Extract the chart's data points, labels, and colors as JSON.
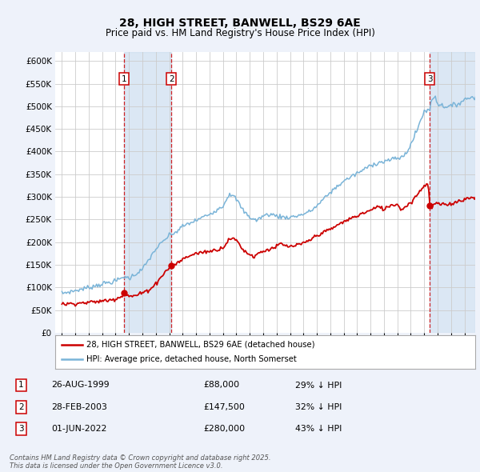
{
  "title": "28, HIGH STREET, BANWELL, BS29 6AE",
  "subtitle": "Price paid vs. HM Land Registry's House Price Index (HPI)",
  "legend_line1": "28, HIGH STREET, BANWELL, BS29 6AE (detached house)",
  "legend_line2": "HPI: Average price, detached house, North Somerset",
  "footer": "Contains HM Land Registry data © Crown copyright and database right 2025.\nThis data is licensed under the Open Government Licence v3.0.",
  "transactions": [
    {
      "num": 1,
      "date": "26-AUG-1999",
      "price": 88000,
      "note": "29% ↓ HPI",
      "year": 1999.65
    },
    {
      "num": 2,
      "date": "28-FEB-2003",
      "price": 147500,
      "note": "32% ↓ HPI",
      "year": 2003.16
    },
    {
      "num": 3,
      "date": "01-JUN-2022",
      "price": 280000,
      "note": "43% ↓ HPI",
      "year": 2022.42
    }
  ],
  "hpi_color": "#7ab4d8",
  "price_color": "#cc0000",
  "background_color": "#eef2fa",
  "plot_bg": "#ffffff",
  "shade_color": "#ccddf0",
  "ylim": [
    0,
    620000
  ],
  "yticks": [
    0,
    50000,
    100000,
    150000,
    200000,
    250000,
    300000,
    350000,
    400000,
    450000,
    500000,
    550000,
    600000
  ],
  "xlim_start": 1994.5,
  "xlim_end": 2025.8,
  "xticks": [
    1995,
    1996,
    1997,
    1998,
    1999,
    2000,
    2001,
    2002,
    2003,
    2004,
    2005,
    2006,
    2007,
    2008,
    2009,
    2010,
    2011,
    2012,
    2013,
    2014,
    2015,
    2016,
    2017,
    2018,
    2019,
    2020,
    2021,
    2022,
    2023,
    2024,
    2025
  ],
  "hpi_anchors": {
    "1995.0": 87000,
    "1996.0": 93000,
    "1997.0": 100000,
    "1998.0": 108000,
    "1999.0": 114000,
    "1999.65": 124000,
    "2000.0": 120000,
    "2001.0": 140000,
    "2002.0": 185000,
    "2003.0": 215000,
    "2003.16": 217000,
    "2003.5": 222000,
    "2004.0": 235000,
    "2005.0": 248000,
    "2006.0": 262000,
    "2007.0": 280000,
    "2007.5": 308000,
    "2008.0": 295000,
    "2008.5": 270000,
    "2009.0": 255000,
    "2009.5": 248000,
    "2010.0": 258000,
    "2010.5": 262000,
    "2011.0": 258000,
    "2011.5": 255000,
    "2012.0": 255000,
    "2012.5": 258000,
    "2013.0": 262000,
    "2013.5": 268000,
    "2014.0": 280000,
    "2015.0": 310000,
    "2016.0": 335000,
    "2017.0": 352000,
    "2017.5": 360000,
    "2018.0": 370000,
    "2018.5": 375000,
    "2019.0": 378000,
    "2019.5": 382000,
    "2020.0": 385000,
    "2020.5": 390000,
    "2021.0": 415000,
    "2021.5": 450000,
    "2022.0": 490000,
    "2022.42": 491000,
    "2022.5": 510000,
    "2022.8": 525000,
    "2023.0": 505000,
    "2023.5": 500000,
    "2024.0": 500000,
    "2024.5": 505000,
    "2025.0": 515000,
    "2025.5": 520000
  },
  "price_anchors": {
    "1995.0": 63000,
    "1996.0": 65000,
    "1997.0": 67000,
    "1998.0": 70000,
    "1998.5": 72000,
    "1999.0": 75000,
    "1999.5": 82000,
    "1999.65": 88000,
    "2000.0": 80000,
    "2000.5": 82000,
    "2001.0": 88000,
    "2001.5": 95000,
    "2002.0": 108000,
    "2002.5": 128000,
    "2003.0": 143000,
    "2003.16": 147500,
    "2003.5": 152000,
    "2004.0": 162000,
    "2004.5": 170000,
    "2005.0": 175000,
    "2005.5": 178000,
    "2006.0": 180000,
    "2006.5": 183000,
    "2007.0": 188000,
    "2007.3": 200000,
    "2007.5": 208000,
    "2008.0": 205000,
    "2008.3": 192000,
    "2008.6": 180000,
    "2009.0": 173000,
    "2009.3": 168000,
    "2009.6": 175000,
    "2010.0": 180000,
    "2010.5": 185000,
    "2011.0": 190000,
    "2011.3": 197000,
    "2011.6": 192000,
    "2012.0": 190000,
    "2012.5": 193000,
    "2013.0": 197000,
    "2013.5": 205000,
    "2014.0": 215000,
    "2014.5": 222000,
    "2015.0": 228000,
    "2015.5": 237000,
    "2016.0": 245000,
    "2016.5": 252000,
    "2017.0": 258000,
    "2017.5": 265000,
    "2018.0": 270000,
    "2018.3": 275000,
    "2018.6": 278000,
    "2019.0": 273000,
    "2019.3": 278000,
    "2019.6": 283000,
    "2020.0": 283000,
    "2020.3": 272000,
    "2020.6": 278000,
    "2021.0": 288000,
    "2021.3": 298000,
    "2021.6": 310000,
    "2022.0": 325000,
    "2022.3": 330000,
    "2022.42": 280000,
    "2022.5": 275000,
    "2022.8": 285000,
    "2023.0": 285000,
    "2023.5": 282000,
    "2024.0": 285000,
    "2024.5": 290000,
    "2025.0": 295000,
    "2025.5": 298000
  }
}
